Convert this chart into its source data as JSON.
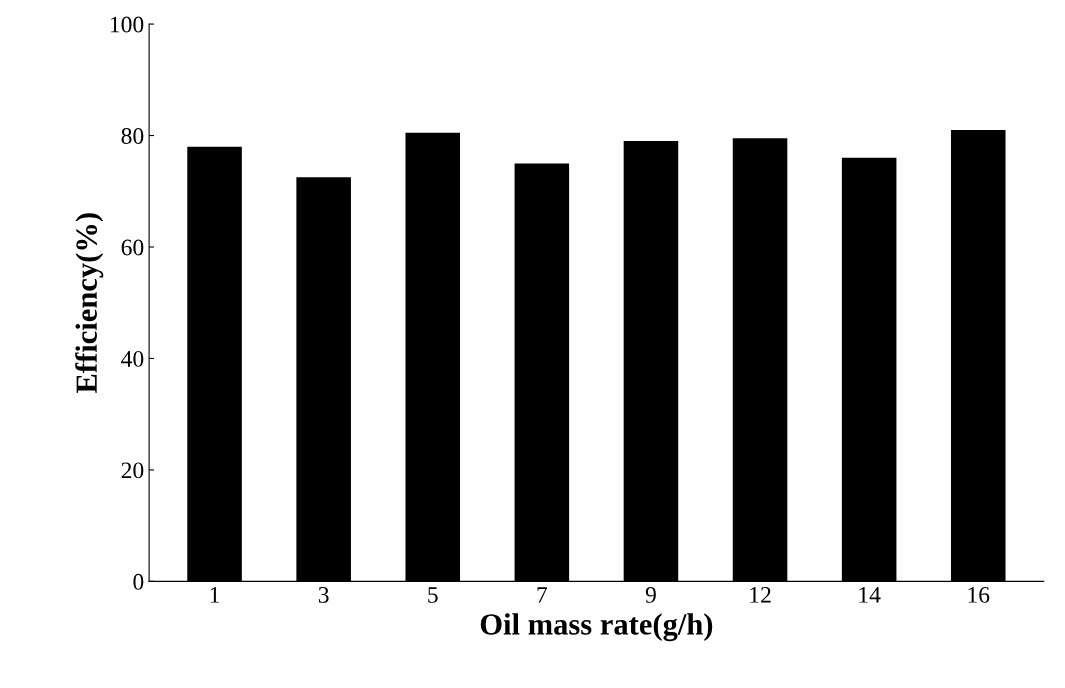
{
  "chart_data": {
    "type": "bar",
    "xlabel": "Oil mass rate(g/h)",
    "ylabel": "Efficiency(%)",
    "categories": [
      "1",
      "3",
      "5",
      "7",
      "9",
      "12",
      "14",
      "16"
    ],
    "values": [
      78,
      72.5,
      80.5,
      75,
      79,
      79.5,
      76,
      81
    ],
    "color": "#000000",
    "ylim": [
      0,
      100
    ],
    "yticks": [
      0,
      20,
      40,
      60,
      80,
      100
    ],
    "grid": false,
    "legend": false
  }
}
